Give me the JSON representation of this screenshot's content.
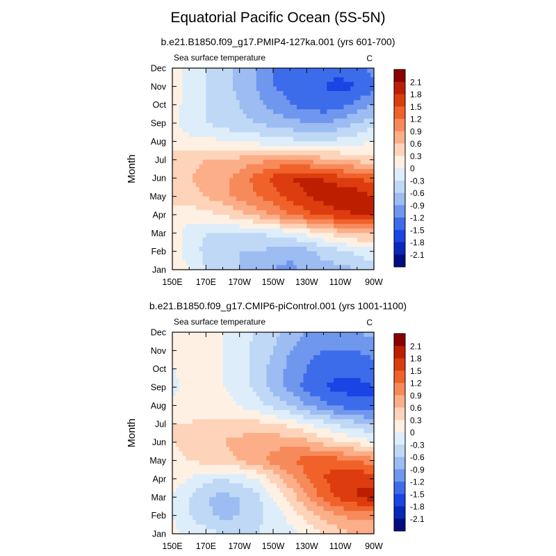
{
  "page": {
    "title": "Equatorial Pacific Ocean (5S-5N)"
  },
  "chart_data": [
    {
      "type": "heatmap",
      "title": "b.e21.B1850.f09_g17.PMIP4-127ka.001 (yrs 601-700)",
      "left_label": "Sea surface temperature",
      "right_label": "C",
      "xlabel": "",
      "ylabel": "Month",
      "x_ticks": [
        "150E",
        "170E",
        "170W",
        "150W",
        "130W",
        "110W",
        "90W"
      ],
      "y_ticks": [
        "Jan",
        "Feb",
        "Mar",
        "Apr",
        "May",
        "Jun",
        "Jul",
        "Aug",
        "Sep",
        "Oct",
        "Nov",
        "Dec"
      ],
      "xlim": [
        150,
        270
      ],
      "ylim": [
        "Jan",
        "Dec"
      ],
      "legend_levels": [
        "2.1",
        "1.8",
        "1.5",
        "1.2",
        "0.9",
        "0.6",
        "0.3",
        "0",
        "-0.3",
        "-0.6",
        "-0.9",
        "-1.2",
        "-1.5",
        "-1.8",
        "-2.1"
      ],
      "legend_colors": [
        "#8b0000",
        "#be1e00",
        "#dc3c0e",
        "#f0622a",
        "#f78a5a",
        "#fbae88",
        "#fdd4b9",
        "#fff0e4",
        "#ddeefa",
        "#bfd8f6",
        "#9cbcf2",
        "#6f97ee",
        "#3d6ceb",
        "#1a45e4",
        "#0a28b8",
        "#000e82"
      ],
      "grid": false,
      "legend_position": "right",
      "x": [
        150,
        160,
        170,
        180,
        190,
        200,
        210,
        220,
        230,
        240,
        250,
        260,
        270
      ],
      "values": [
        [
          0.2,
          0.0,
          -0.3,
          -0.5,
          -0.6,
          -0.7,
          -0.9,
          -1.0,
          -0.8,
          -0.7,
          -0.7,
          -0.6,
          -0.5
        ],
        [
          0.1,
          -0.1,
          -0.4,
          -0.5,
          -0.6,
          -0.6,
          -0.7,
          -0.8,
          -0.7,
          -0.5,
          -0.4,
          -0.2,
          -0.1
        ],
        [
          0.1,
          -0.1,
          -0.3,
          -0.3,
          -0.3,
          -0.3,
          -0.2,
          -0.1,
          0.1,
          0.3,
          0.5,
          0.6,
          0.7
        ],
        [
          0.2,
          0.1,
          0.2,
          0.3,
          0.5,
          0.7,
          0.9,
          1.2,
          1.4,
          1.6,
          1.7,
          1.8,
          1.8
        ],
        [
          0.4,
          0.5,
          0.6,
          0.8,
          1.0,
          1.2,
          1.4,
          1.6,
          1.8,
          1.9,
          2.1,
          2.0,
          1.8
        ],
        [
          0.5,
          0.6,
          0.7,
          0.8,
          1.0,
          1.3,
          1.6,
          1.8,
          1.9,
          1.8,
          1.6,
          1.5,
          1.3
        ],
        [
          0.4,
          0.5,
          0.6,
          0.6,
          0.7,
          0.8,
          0.9,
          0.9,
          0.8,
          0.7,
          0.6,
          0.5,
          0.4
        ],
        [
          0.2,
          0.1,
          0.1,
          0.0,
          -0.1,
          -0.1,
          -0.2,
          -0.2,
          -0.3,
          -0.3,
          -0.2,
          -0.1,
          0.0
        ],
        [
          0.1,
          -0.2,
          -0.3,
          -0.4,
          -0.5,
          -0.6,
          -0.7,
          -0.8,
          -0.9,
          -0.9,
          -0.8,
          -0.6,
          -0.4
        ],
        [
          0.2,
          -0.2,
          -0.3,
          -0.4,
          -0.6,
          -0.8,
          -1.0,
          -1.2,
          -1.3,
          -1.4,
          -1.3,
          -1.1,
          -0.9
        ],
        [
          0.2,
          -0.2,
          -0.3,
          -0.4,
          -0.7,
          -0.9,
          -1.2,
          -1.3,
          -1.4,
          -1.5,
          -1.6,
          -1.5,
          -1.3
        ],
        [
          0.2,
          -0.1,
          -0.3,
          -0.4,
          -0.7,
          -0.9,
          -1.2,
          -1.3,
          -1.4,
          -1.4,
          -1.4,
          -1.3,
          -1.1
        ]
      ]
    },
    {
      "type": "heatmap",
      "title": "b.e21.B1850.f09_g17.CMIP6-piControl.001 (yrs 1001-1100)",
      "left_label": "Sea surface temperature",
      "right_label": "C",
      "xlabel": "",
      "ylabel": "Month",
      "x_ticks": [
        "150E",
        "170E",
        "170W",
        "150W",
        "130W",
        "110W",
        "90W"
      ],
      "y_ticks": [
        "Jan",
        "Feb",
        "Mar",
        "Apr",
        "May",
        "Jun",
        "Jul",
        "Aug",
        "Sep",
        "Oct",
        "Nov",
        "Dec"
      ],
      "xlim": [
        150,
        270
      ],
      "ylim": [
        "Jan",
        "Dec"
      ],
      "legend_levels": [
        "2.1",
        "1.8",
        "1.5",
        "1.2",
        "0.9",
        "0.6",
        "0.3",
        "0",
        "-0.3",
        "-0.6",
        "-0.9",
        "-1.2",
        "-1.5",
        "-1.8",
        "-2.1"
      ],
      "legend_colors": [
        "#8b0000",
        "#be1e00",
        "#dc3c0e",
        "#f0622a",
        "#f78a5a",
        "#fbae88",
        "#fdd4b9",
        "#fff0e4",
        "#ddeefa",
        "#bfd8f6",
        "#9cbcf2",
        "#6f97ee",
        "#3d6ceb",
        "#1a45e4",
        "#0a28b8",
        "#000e82"
      ],
      "grid": false,
      "legend_position": "right",
      "x": [
        150,
        160,
        170,
        180,
        190,
        200,
        210,
        220,
        230,
        240,
        250,
        260,
        270
      ],
      "values": [
        [
          0.1,
          -0.1,
          -0.2,
          -0.3,
          -0.4,
          -0.3,
          -0.2,
          -0.1,
          0.1,
          0.3,
          0.5,
          0.6,
          0.7
        ],
        [
          0.0,
          -0.3,
          -0.5,
          -0.7,
          -0.6,
          -0.4,
          -0.2,
          0.1,
          0.4,
          0.7,
          0.9,
          1.0,
          1.0
        ],
        [
          0.0,
          -0.3,
          -0.6,
          -0.7,
          -0.6,
          -0.4,
          0.0,
          0.4,
          0.9,
          1.3,
          1.6,
          1.8,
          2.0
        ],
        [
          0.1,
          0.0,
          -0.2,
          -0.3,
          -0.2,
          0.0,
          0.4,
          0.8,
          1.2,
          1.5,
          1.7,
          1.8,
          1.6
        ],
        [
          0.2,
          0.3,
          0.4,
          0.5,
          0.6,
          0.8,
          1.0,
          1.2,
          1.3,
          1.4,
          1.3,
          1.2,
          1.0
        ],
        [
          0.3,
          0.4,
          0.5,
          0.6,
          0.7,
          0.8,
          0.8,
          0.8,
          0.7,
          0.5,
          0.3,
          0.2,
          0.0
        ],
        [
          0.3,
          0.3,
          0.4,
          0.4,
          0.4,
          0.4,
          0.3,
          0.2,
          0.0,
          -0.2,
          -0.4,
          -0.5,
          -0.7
        ],
        [
          0.1,
          0.2,
          0.1,
          0.1,
          0.0,
          -0.2,
          -0.4,
          -0.6,
          -0.9,
          -1.1,
          -1.3,
          -1.4,
          -1.5
        ],
        [
          -0.1,
          0.1,
          0.1,
          0.0,
          -0.1,
          -0.4,
          -0.7,
          -1.0,
          -1.3,
          -1.5,
          -1.6,
          -1.6,
          -1.5
        ],
        [
          0.0,
          0.1,
          0.1,
          0.0,
          -0.1,
          -0.4,
          -0.7,
          -1.0,
          -1.2,
          -1.4,
          -1.4,
          -1.4,
          -1.3
        ],
        [
          0.1,
          0.1,
          0.1,
          0.0,
          -0.2,
          -0.4,
          -0.6,
          -0.9,
          -1.1,
          -1.2,
          -1.2,
          -1.2,
          -1.1
        ],
        [
          0.1,
          0.1,
          0.1,
          0.0,
          -0.2,
          -0.3,
          -0.5,
          -0.7,
          -0.9,
          -1.0,
          -1.0,
          -0.9,
          -0.8
        ]
      ]
    }
  ]
}
